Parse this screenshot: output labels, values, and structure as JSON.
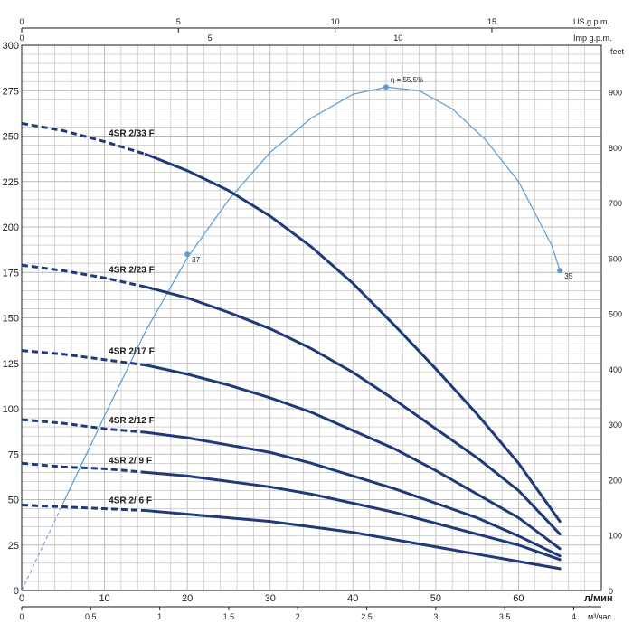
{
  "chart_data": {
    "type": "line",
    "colors": {
      "curve": "#1f3a7a",
      "efficiency": "#5b9bd5",
      "grid": "#b8b8b8",
      "axis": "#1a1a1a"
    },
    "grid": true,
    "xlabel": "л/мин",
    "xlim": [
      0,
      70
    ],
    "x_ticks": [
      "0",
      "10",
      "20",
      "30",
      "40",
      "50",
      "60"
    ],
    "ylim": [
      0,
      300
    ],
    "y_ticks": [
      "0",
      "25",
      "50",
      "75",
      "100",
      "125",
      "150",
      "175",
      "200",
      "225",
      "250",
      "275",
      "300"
    ],
    "secondary_axes": {
      "m3h": {
        "label": "м³/час",
        "ticks": [
          "0",
          "0.5",
          "1",
          "1.5",
          "2",
          "2.5",
          "3",
          "3.5",
          "4"
        ]
      },
      "us_gpm": {
        "label": "US g.p.m.",
        "ticks": [
          "0",
          "5",
          "10",
          "15"
        ]
      },
      "imp_gpm": {
        "label": "Imp g.p.m.",
        "ticks": [
          "0",
          "5",
          "10"
        ]
      },
      "feet": {
        "label": "feet",
        "ticks": [
          "0",
          "100",
          "200",
          "300",
          "400",
          "500",
          "600",
          "700",
          "800",
          "900"
        ]
      }
    },
    "series": [
      {
        "name": "4SR 2/33 F",
        "dashed_until": 11,
        "x": [
          0,
          5,
          10,
          15,
          20,
          25,
          30,
          35,
          40,
          45,
          50,
          55,
          60,
          65
        ],
        "y": [
          257,
          253,
          247,
          240,
          231,
          220,
          206,
          189,
          169,
          146,
          122,
          97,
          70,
          38
        ]
      },
      {
        "name": "4SR 2/23 F",
        "dashed_until": 11,
        "x": [
          0,
          5,
          10,
          15,
          20,
          25,
          30,
          35,
          40,
          45,
          50,
          55,
          60,
          65
        ],
        "y": [
          179,
          176,
          172,
          167,
          161,
          153,
          144,
          133,
          120,
          105,
          89,
          73,
          55,
          31
        ]
      },
      {
        "name": "4SR 2/17 F",
        "dashed_until": 11,
        "x": [
          0,
          5,
          10,
          15,
          20,
          25,
          30,
          35,
          40,
          45,
          50,
          55,
          60,
          65
        ],
        "y": [
          132,
          130,
          127,
          124,
          119,
          113,
          106,
          98,
          88,
          78,
          66,
          53,
          40,
          23
        ]
      },
      {
        "name": "4SR 2/12 F",
        "dashed_until": 11,
        "x": [
          0,
          5,
          10,
          15,
          20,
          25,
          30,
          35,
          40,
          45,
          50,
          55,
          60,
          65
        ],
        "y": [
          94,
          92,
          89,
          87,
          84,
          80,
          76,
          70,
          63,
          56,
          48,
          40,
          30,
          19
        ]
      },
      {
        "name": "4SR 2/ 9 F",
        "dashed_until": 11,
        "x": [
          0,
          5,
          10,
          15,
          20,
          25,
          30,
          35,
          40,
          45,
          50,
          55,
          60,
          65
        ],
        "y": [
          70,
          68,
          67,
          65,
          63,
          60,
          57,
          53,
          48,
          43,
          37,
          31,
          25,
          17
        ]
      },
      {
        "name": "4SR 2/ 6 F",
        "dashed_until": 11,
        "x": [
          0,
          5,
          10,
          15,
          20,
          25,
          30,
          35,
          40,
          45,
          50,
          55,
          60,
          65
        ],
        "y": [
          47,
          46,
          45,
          44,
          42,
          40,
          38,
          35,
          32,
          28,
          24,
          20,
          16,
          12
        ]
      }
    ],
    "efficiency_curve": {
      "dashed_until": 5,
      "x": [
        0,
        5,
        10,
        15,
        20,
        25,
        30,
        35,
        40,
        44,
        48,
        52,
        56,
        60,
        64,
        65
      ],
      "y": [
        0,
        48,
        96,
        143,
        183,
        215,
        241,
        260,
        273,
        277,
        275,
        265,
        248,
        225,
        190,
        176
      ],
      "markers": [
        {
          "x": 20,
          "y": 185,
          "label": "37"
        },
        {
          "x": 44,
          "y": 277,
          "label": "η = 55.5%"
        },
        {
          "x": 65,
          "y": 176,
          "label": "35"
        }
      ]
    }
  }
}
